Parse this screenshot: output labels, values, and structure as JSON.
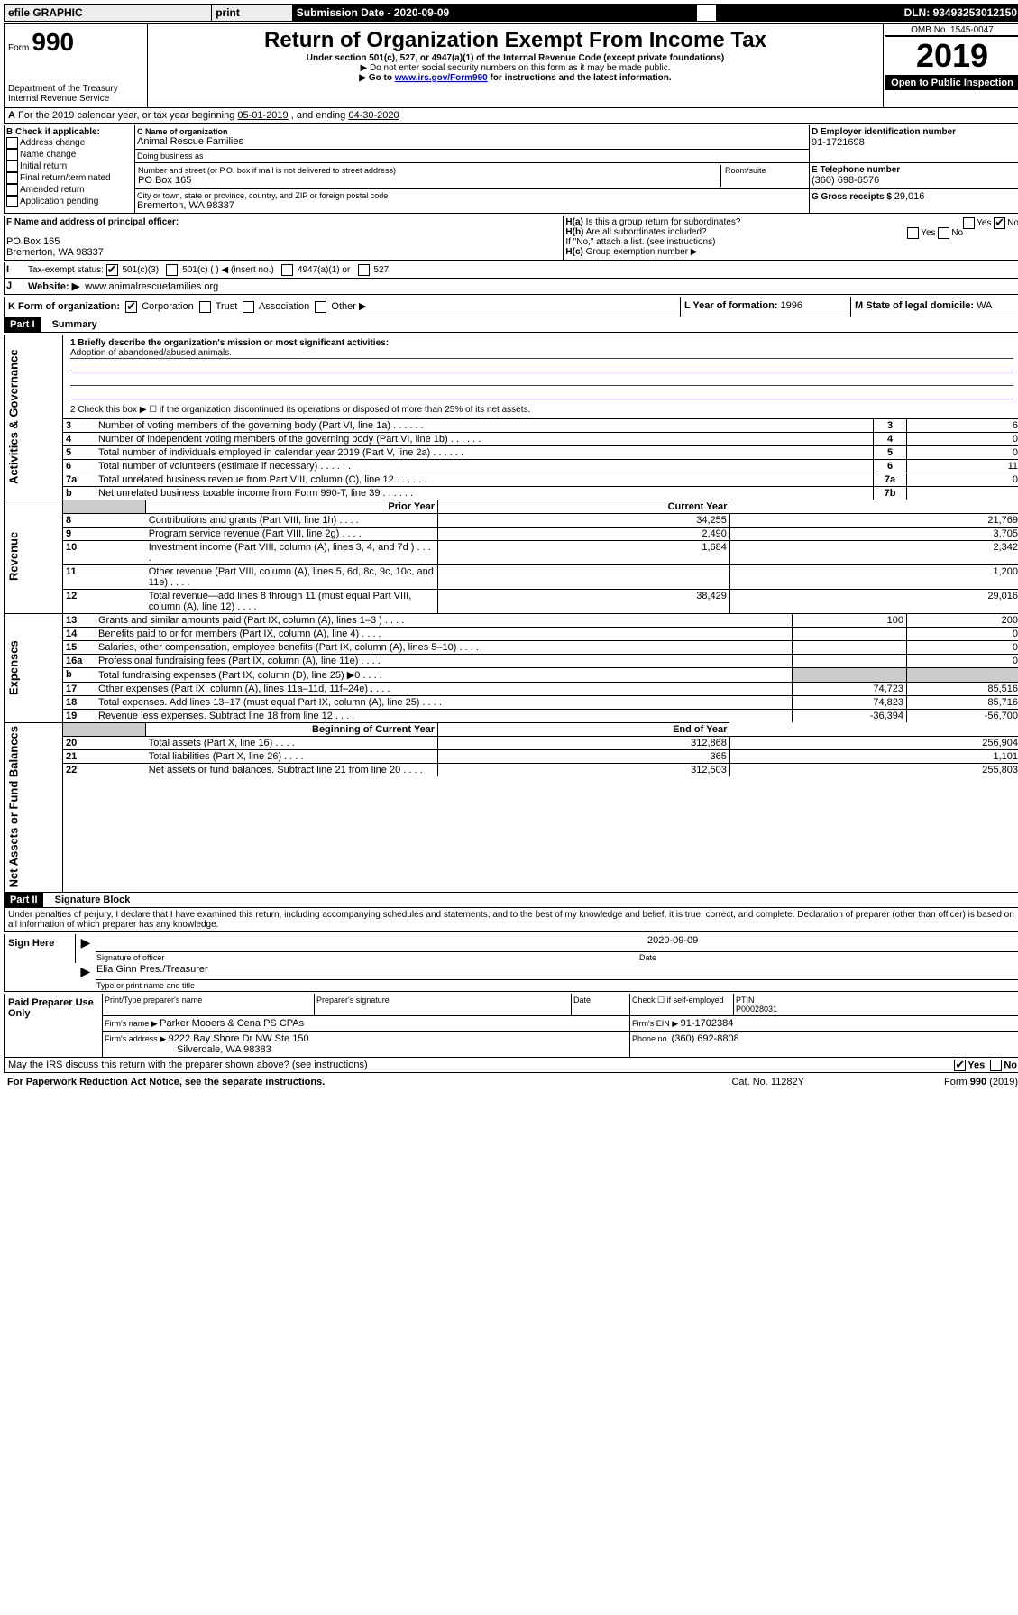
{
  "topbar": {
    "efile": "efile GRAPHIC",
    "print": "print",
    "submission_label": "Submission Date - ",
    "submission_date": "2020-09-09",
    "dln_label": "DLN: ",
    "dln": "93493253012150"
  },
  "header": {
    "form_label": "Form",
    "form_number": "990",
    "dept": "Department of the Treasury\nInternal Revenue Service",
    "title": "Return of Organization Exempt From Income Tax",
    "subtitle": "Under section 501(c), 527, or 4947(a)(1) of the Internal Revenue Code (except private foundations)",
    "note1": "▶ Do not enter social security numbers on this form as it may be made public.",
    "note2_pre": "▶ Go to ",
    "note2_link": "www.irs.gov/Form990",
    "note2_post": " for instructions and the latest information.",
    "omb": "OMB No. 1545-0047",
    "year": "2019",
    "inspection": "Open to Public Inspection"
  },
  "A": {
    "text": "For the 2019 calendar year, or tax year beginning ",
    "begin": "05-01-2019",
    "mid": " , and ending ",
    "end": "04-30-2020"
  },
  "B": {
    "label": "B Check if applicable:",
    "items": [
      "Address change",
      "Name change",
      "Initial return",
      "Final return/terminated",
      "Amended return",
      "Application pending"
    ]
  },
  "C": {
    "name_label": "C Name of organization",
    "name": "Animal Rescue Families",
    "dba_label": "Doing business as",
    "dba": "",
    "addr_label": "Number and street (or P.O. box if mail is not delivered to street address)",
    "room_label": "Room/suite",
    "addr": "PO Box 165",
    "city_label": "City or town, state or province, country, and ZIP or foreign postal code",
    "city": "Bremerton, WA  98337"
  },
  "D": {
    "label": "D Employer identification number",
    "value": "91-1721698"
  },
  "E": {
    "label": "E Telephone number",
    "value": "(360) 698-6576"
  },
  "G": {
    "label": "G Gross receipts $ ",
    "value": "29,016"
  },
  "F": {
    "label": "F  Name and address of principal officer:",
    "line1": "PO Box 165",
    "line2": "Bremerton, WA  98337"
  },
  "H": {
    "a_label": "H(a)  Is this a group return for subordinates?",
    "b_label": "H(b)  Are all subordinates included?",
    "b_note": "If \"No,\" attach a list. (see instructions)",
    "c_label": "H(c)  Group exemption number ▶",
    "yes": "Yes",
    "no": "No"
  },
  "I": {
    "label": "Tax-exempt status:",
    "opts": [
      "501(c)(3)",
      "501(c) (   ) ◀ (insert no.)",
      "4947(a)(1) or",
      "527"
    ]
  },
  "J": {
    "label": "Website: ▶",
    "value": "www.animalrescuefamilies.org"
  },
  "K": {
    "label": "K Form of organization:",
    "opts": [
      "Corporation",
      "Trust",
      "Association",
      "Other ▶"
    ]
  },
  "L": {
    "label": "L Year of formation: ",
    "value": "1996"
  },
  "M": {
    "label": "M State of legal domicile: ",
    "value": "WA"
  },
  "part1": {
    "header": "Part I",
    "title": "Summary",
    "q1_label": "1  Briefly describe the organization's mission or most significant activities:",
    "q1_text": "Adoption of abandoned/abused animals.",
    "q2": "2   Check this box ▶ ☐  if the organization discontinued its operations or disposed of more than 25% of its net assets.",
    "rows_gov": [
      {
        "n": "3",
        "t": "Number of voting members of the governing body (Part VI, line 1a)",
        "lab": "3",
        "v": "6"
      },
      {
        "n": "4",
        "t": "Number of independent voting members of the governing body (Part VI, line 1b)",
        "lab": "4",
        "v": "0"
      },
      {
        "n": "5",
        "t": "Total number of individuals employed in calendar year 2019 (Part V, line 2a)",
        "lab": "5",
        "v": "0"
      },
      {
        "n": "6",
        "t": "Total number of volunteers (estimate if necessary)",
        "lab": "6",
        "v": "11"
      },
      {
        "n": "7a",
        "t": "Total unrelated business revenue from Part VIII, column (C), line 12",
        "lab": "7a",
        "v": "0"
      },
      {
        "n": "b",
        "t": "Net unrelated business taxable income from Form 990-T, line 39",
        "lab": "7b",
        "v": ""
      }
    ],
    "col_prior": "Prior Year",
    "col_current": "Current Year",
    "rows_rev": [
      {
        "n": "8",
        "t": "Contributions and grants (Part VIII, line 1h)",
        "p": "34,255",
        "c": "21,769"
      },
      {
        "n": "9",
        "t": "Program service revenue (Part VIII, line 2g)",
        "p": "2,490",
        "c": "3,705"
      },
      {
        "n": "10",
        "t": "Investment income (Part VIII, column (A), lines 3, 4, and 7d )",
        "p": "1,684",
        "c": "2,342"
      },
      {
        "n": "11",
        "t": "Other revenue (Part VIII, column (A), lines 5, 6d, 8c, 9c, 10c, and 11e)",
        "p": "",
        "c": "1,200"
      },
      {
        "n": "12",
        "t": "Total revenue—add lines 8 through 11 (must equal Part VIII, column (A), line 12)",
        "p": "38,429",
        "c": "29,016"
      }
    ],
    "rows_exp": [
      {
        "n": "13",
        "t": "Grants and similar amounts paid (Part IX, column (A), lines 1–3 )",
        "p": "100",
        "c": "200"
      },
      {
        "n": "14",
        "t": "Benefits paid to or for members (Part IX, column (A), line 4)",
        "p": "",
        "c": "0"
      },
      {
        "n": "15",
        "t": "Salaries, other compensation, employee benefits (Part IX, column (A), lines 5–10)",
        "p": "",
        "c": "0"
      },
      {
        "n": "16a",
        "t": "Professional fundraising fees (Part IX, column (A), line 11e)",
        "p": "",
        "c": "0"
      },
      {
        "n": "b",
        "t": "Total fundraising expenses (Part IX, column (D), line 25) ▶0",
        "p": "grey",
        "c": "grey"
      },
      {
        "n": "17",
        "t": "Other expenses (Part IX, column (A), lines 11a–11d, 11f–24e)",
        "p": "74,723",
        "c": "85,516"
      },
      {
        "n": "18",
        "t": "Total expenses. Add lines 13–17 (must equal Part IX, column (A), line 25)",
        "p": "74,823",
        "c": "85,716"
      },
      {
        "n": "19",
        "t": "Revenue less expenses. Subtract line 18 from line 12",
        "p": "-36,394",
        "c": "-56,700"
      }
    ],
    "col_begin": "Beginning of Current Year",
    "col_end": "End of Year",
    "rows_net": [
      {
        "n": "20",
        "t": "Total assets (Part X, line 16)",
        "p": "312,868",
        "c": "256,904"
      },
      {
        "n": "21",
        "t": "Total liabilities (Part X, line 26)",
        "p": "365",
        "c": "1,101"
      },
      {
        "n": "22",
        "t": "Net assets or fund balances. Subtract line 21 from line 20",
        "p": "312,503",
        "c": "255,803"
      }
    ],
    "side_gov": "Activities & Governance",
    "side_rev": "Revenue",
    "side_exp": "Expenses",
    "side_net": "Net Assets or Fund Balances"
  },
  "part2": {
    "header": "Part II",
    "title": "Signature Block",
    "perjury": "Under penalties of perjury, I declare that I have examined this return, including accompanying schedules and statements, and to the best of my knowledge and belief, it is true, correct, and complete. Declaration of preparer (other than officer) is based on all information of which preparer has any knowledge.",
    "sign_here": "Sign Here",
    "sig_officer": "Signature of officer",
    "sig_date": "2020-09-09",
    "date_label": "Date",
    "officer_name": "Elia Ginn Pres./Treasurer",
    "officer_title": "Type or print name and title",
    "paid": "Paid Preparer Use Only",
    "prep_name_label": "Print/Type preparer's name",
    "prep_sig_label": "Preparer's signature",
    "prep_date_label": "Date",
    "self_emp": "Check ☐ if self-employed",
    "ptin_label": "PTIN",
    "ptin": "P00028031",
    "firm_name_label": "Firm's name    ▶ ",
    "firm_name": "Parker Mooers & Cena PS CPAs",
    "firm_ein_label": "Firm's EIN ▶ ",
    "firm_ein": "91-1702384",
    "firm_addr_label": "Firm's address ▶ ",
    "firm_addr1": "9222 Bay Shore Dr NW Ste 150",
    "firm_addr2": "Silverdale, WA  98383",
    "phone_label": "Phone no. ",
    "phone": "(360) 692-8808",
    "discuss": "May the IRS discuss this return with the preparer shown above? (see instructions)",
    "yes": "Yes",
    "no": "No"
  },
  "footer": {
    "left": "For Paperwork Reduction Act Notice, see the separate instructions.",
    "mid": "Cat. No. 11282Y",
    "right": "Form 990 (2019)"
  }
}
